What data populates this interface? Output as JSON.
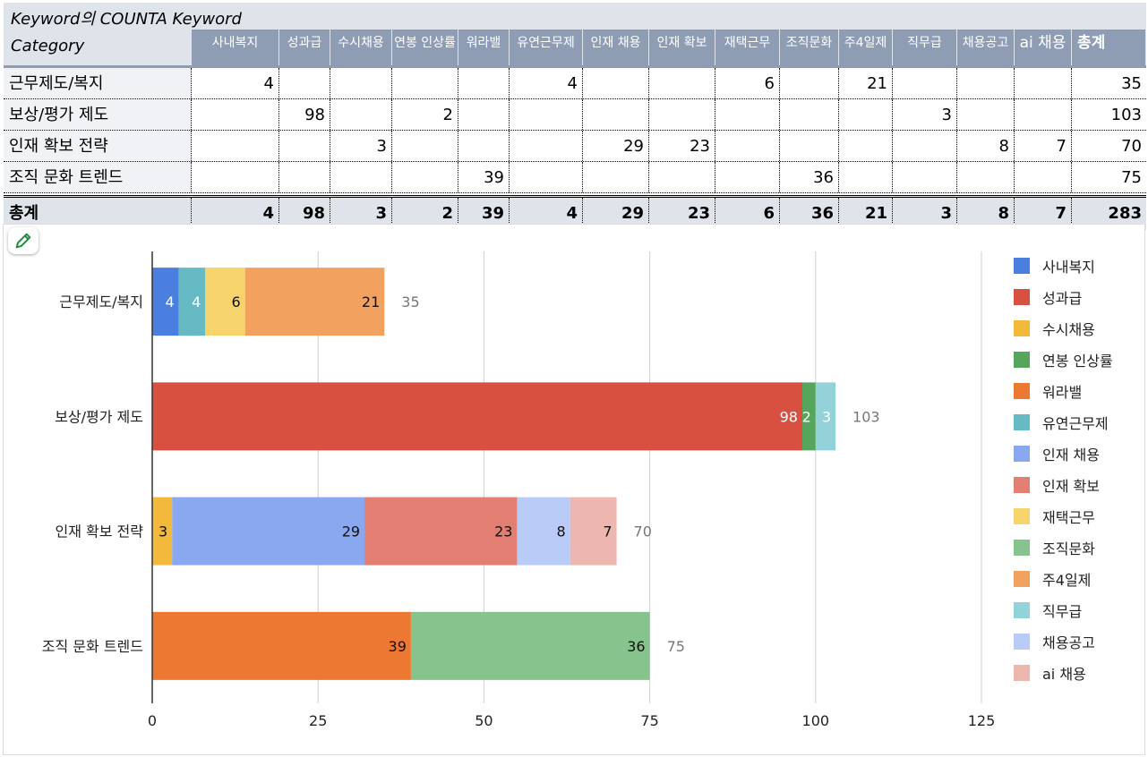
{
  "pivot": {
    "title": "Keyword의 COUNTA  Keyword",
    "row_header": "Category",
    "columns": [
      "사내복지",
      "성과급",
      "수시채용",
      "연봉 인상률",
      "워라밸",
      "유연근무제",
      "인재 채용",
      "인재 확보",
      "재택근무",
      "조직문화",
      "주4일제",
      "직무급",
      "채용공고",
      "ai 채용"
    ],
    "total_label": "총계",
    "rows": [
      {
        "name": "근무제도/복지",
        "cells": [
          "4",
          "",
          "",
          "",
          "",
          "4",
          "",
          "",
          "6",
          "",
          "21",
          "",
          "",
          ""
        ],
        "total": "35"
      },
      {
        "name": "보상/평가 제도",
        "cells": [
          "",
          "98",
          "",
          "2",
          "",
          "",
          "",
          "",
          "",
          "",
          "",
          "3",
          "",
          ""
        ],
        "total": "103"
      },
      {
        "name": "인재 확보 전략",
        "cells": [
          "",
          "",
          "3",
          "",
          "",
          "",
          "29",
          "23",
          "",
          "",
          "",
          "",
          "8",
          "7"
        ],
        "total": "70"
      },
      {
        "name": "조직 문화 트렌드",
        "cells": [
          "",
          "",
          "",
          "",
          "39",
          "",
          "",
          "",
          "",
          "36",
          "",
          "",
          "",
          ""
        ],
        "total": "75"
      }
    ],
    "grand_total": {
      "name": "총계",
      "cells": [
        "4",
        "98",
        "3",
        "2",
        "39",
        "4",
        "29",
        "23",
        "6",
        "36",
        "21",
        "3",
        "8",
        "7"
      ],
      "total": "283"
    }
  },
  "chart_data": {
    "type": "bar",
    "orientation": "horizontal",
    "stacked": true,
    "categories": [
      "근무제도/복지",
      "보상/평가 제도",
      "인재 확보 전략",
      "조직 문화 트렌드"
    ],
    "series": [
      {
        "name": "사내복지",
        "color": "#4a7fe0",
        "values": [
          4,
          0,
          0,
          0
        ]
      },
      {
        "name": "성과급",
        "color": "#d85140",
        "values": [
          0,
          98,
          0,
          0
        ]
      },
      {
        "name": "수시채용",
        "color": "#f2b93b",
        "values": [
          0,
          0,
          3,
          0
        ]
      },
      {
        "name": "연봉 인상률",
        "color": "#55a65c",
        "values": [
          0,
          2,
          0,
          0
        ]
      },
      {
        "name": "워라밸",
        "color": "#ec7832",
        "values": [
          0,
          0,
          0,
          39
        ]
      },
      {
        "name": "유연근무제",
        "color": "#66bac3",
        "values": [
          4,
          0,
          0,
          0
        ]
      },
      {
        "name": "인재 채용",
        "color": "#8aa8f0",
        "values": [
          0,
          0,
          29,
          0
        ]
      },
      {
        "name": "인재 확보",
        "color": "#e27e72",
        "values": [
          0,
          0,
          23,
          0
        ]
      },
      {
        "name": "재택근무",
        "color": "#f6d46b",
        "values": [
          6,
          0,
          0,
          0
        ]
      },
      {
        "name": "조직문화",
        "color": "#86c38d",
        "values": [
          0,
          0,
          0,
          36
        ]
      },
      {
        "name": "주4일제",
        "color": "#f2a15e",
        "values": [
          21,
          0,
          0,
          0
        ]
      },
      {
        "name": "직무급",
        "color": "#93d2d8",
        "values": [
          0,
          3,
          0,
          0
        ]
      },
      {
        "name": "채용공고",
        "color": "#b9cbf7",
        "values": [
          0,
          0,
          8,
          0
        ]
      },
      {
        "name": "ai 채용",
        "color": "#edb7b0",
        "values": [
          0,
          0,
          7,
          0
        ]
      }
    ],
    "totals": [
      35,
      103,
      70,
      75
    ],
    "x_ticks": [
      0,
      25,
      50,
      75,
      100,
      125
    ],
    "xlim": [
      0,
      125
    ],
    "grid": true,
    "legend_position": "right"
  }
}
